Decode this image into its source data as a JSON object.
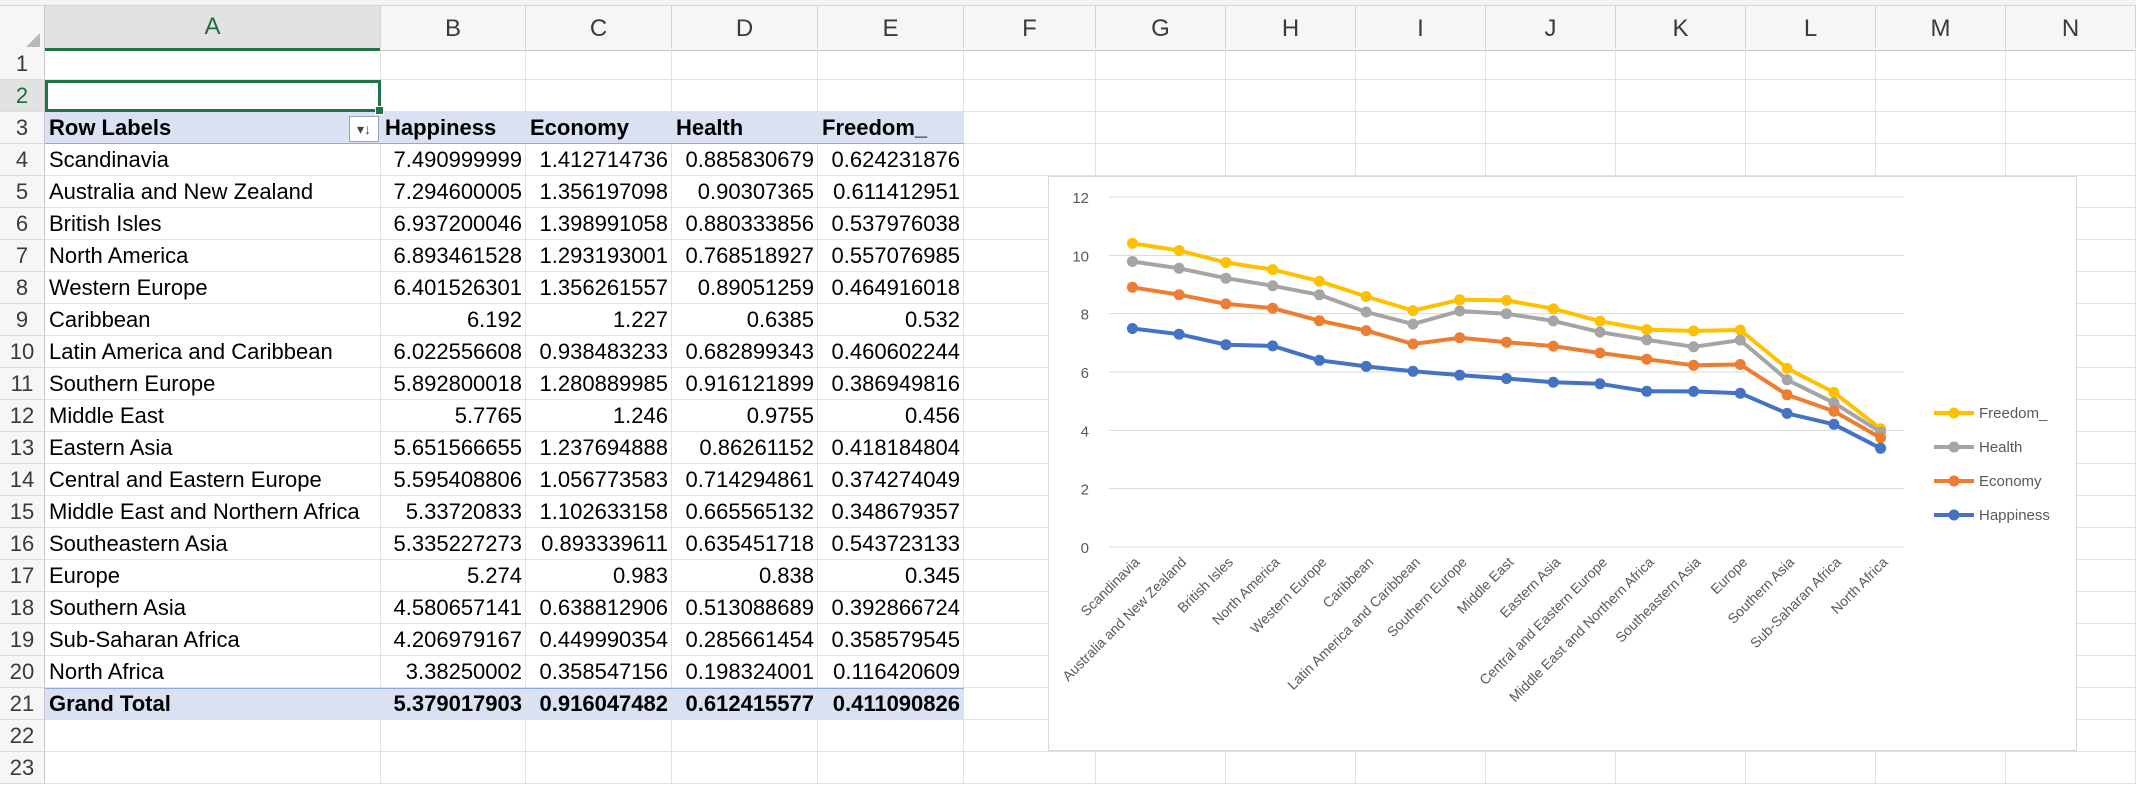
{
  "sheet": {
    "columns": [
      "A",
      "B",
      "C",
      "D",
      "E",
      "F",
      "G",
      "H",
      "I",
      "J",
      "K",
      "L",
      "M",
      "N"
    ],
    "rows": [
      "1",
      "2",
      "3",
      "4",
      "5",
      "6",
      "7",
      "8",
      "9",
      "10",
      "11",
      "12",
      "13",
      "14",
      "15",
      "16",
      "17",
      "18",
      "19",
      "20",
      "21",
      "22",
      "23"
    ],
    "selected_cell": "A2"
  },
  "pivot": {
    "headers": [
      "Row Labels",
      "Happiness",
      "Economy",
      "Health",
      "Freedom_"
    ],
    "rows": [
      [
        "Scandinavia",
        "7.490999999",
        "1.412714736",
        "0.885830679",
        "0.624231876"
      ],
      [
        "Australia and New Zealand",
        "7.294600005",
        "1.356197098",
        "0.90307365",
        "0.611412951"
      ],
      [
        "British Isles",
        "6.937200046",
        "1.398991058",
        "0.880333856",
        "0.537976038"
      ],
      [
        "North America",
        "6.893461528",
        "1.293193001",
        "0.768518927",
        "0.557076985"
      ],
      [
        "Western Europe",
        "6.401526301",
        "1.356261557",
        "0.89051259",
        "0.464916018"
      ],
      [
        "Caribbean",
        "6.192",
        "1.227",
        "0.6385",
        "0.532"
      ],
      [
        "Latin America and Caribbean",
        "6.022556608",
        "0.938483233",
        "0.682899343",
        "0.460602244"
      ],
      [
        "Southern Europe",
        "5.892800018",
        "1.280889985",
        "0.916121899",
        "0.386949816"
      ],
      [
        "Middle East",
        "5.7765",
        "1.246",
        "0.9755",
        "0.456"
      ],
      [
        "Eastern Asia",
        "5.651566655",
        "1.237694888",
        "0.86261152",
        "0.418184804"
      ],
      [
        "Central and Eastern Europe",
        "5.595408806",
        "1.056773583",
        "0.714294861",
        "0.374274049"
      ],
      [
        "Middle East and Northern Africa",
        "5.33720833",
        "1.102633158",
        "0.665565132",
        "0.348679357"
      ],
      [
        "Southeastern Asia",
        "5.335227273",
        "0.893339611",
        "0.635451718",
        "0.543723133"
      ],
      [
        "Europe",
        "5.274",
        "0.983",
        "0.838",
        "0.345"
      ],
      [
        "Southern Asia",
        "4.580657141",
        "0.638812906",
        "0.513088689",
        "0.392866724"
      ],
      [
        "Sub-Saharan Africa",
        "4.206979167",
        "0.449990354",
        "0.285661454",
        "0.358579545"
      ],
      [
        "North Africa",
        "3.38250002",
        "0.358547156",
        "0.198324001",
        "0.116420609"
      ]
    ],
    "grand_total": [
      "Grand Total",
      "5.379017903",
      "0.916047482",
      "0.612415577",
      "0.411090826"
    ],
    "filter_icon": "sort-filter-dropdown-icon"
  },
  "chart_data": {
    "type": "line",
    "stacked": true,
    "categories": [
      "Scandinavia",
      "Australia and New Zealand",
      "British Isles",
      "North America",
      "Western Europe",
      "Caribbean",
      "Latin America and Caribbean",
      "Southern Europe",
      "Middle East",
      "Eastern Asia",
      "Central and Eastern Europe",
      "Middle East and Northern Africa",
      "Southeastern Asia",
      "Europe",
      "Southern Asia",
      "Sub-Saharan Africa",
      "North Africa"
    ],
    "series": [
      {
        "name": "Happiness",
        "color": "#4472c4",
        "values": [
          7.490999999,
          7.294600005,
          6.937200046,
          6.893461528,
          6.401526301,
          6.192,
          6.022556608,
          5.892800018,
          5.7765,
          5.651566655,
          5.595408806,
          5.33720833,
          5.335227273,
          5.274,
          4.580657141,
          4.206979167,
          3.38250002
        ]
      },
      {
        "name": "Economy",
        "color": "#ed7d31",
        "values": [
          1.412714736,
          1.356197098,
          1.398991058,
          1.293193001,
          1.356261557,
          1.227,
          0.938483233,
          1.280889985,
          1.246,
          1.237694888,
          1.056773583,
          1.102633158,
          0.893339611,
          0.983,
          0.638812906,
          0.449990354,
          0.358547156
        ]
      },
      {
        "name": "Health",
        "color": "#a5a5a5",
        "values": [
          0.885830679,
          0.90307365,
          0.880333856,
          0.768518927,
          0.89051259,
          0.6385,
          0.682899343,
          0.916121899,
          0.9755,
          0.86261152,
          0.714294861,
          0.665565132,
          0.635451718,
          0.838,
          0.513088689,
          0.285661454,
          0.198324001
        ]
      },
      {
        "name": "Freedom_",
        "color": "#ffc000",
        "values": [
          0.624231876,
          0.611412951,
          0.537976038,
          0.557076985,
          0.464916018,
          0.532,
          0.460602244,
          0.386949816,
          0.456,
          0.418184804,
          0.374274049,
          0.348679357,
          0.543723133,
          0.345,
          0.392866724,
          0.358579545,
          0.116420609
        ]
      }
    ],
    "ylim": [
      0,
      12
    ],
    "yticks": [
      "0",
      "2",
      "4",
      "6",
      "8",
      "10",
      "12"
    ],
    "grid": true,
    "legend": "right",
    "legend_order": [
      "Freedom_",
      "Health",
      "Economy",
      "Happiness"
    ]
  }
}
